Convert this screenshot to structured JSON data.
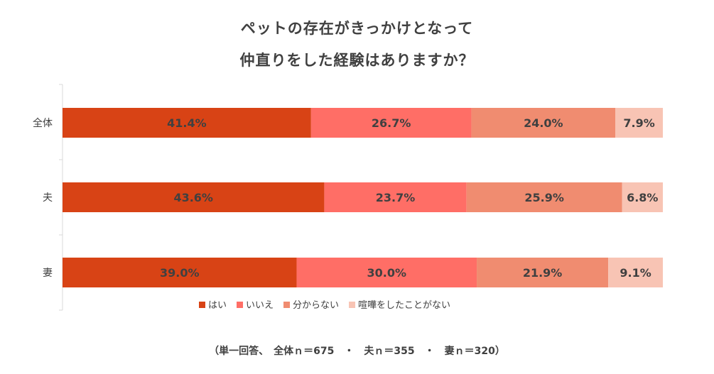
{
  "title_lines": [
    "ペットの存在がきっかけとなって",
    "仲直りをした経験はありますか？"
  ],
  "footnote": "（単一回答、　全体ｎ＝675　・　夫ｎ＝355　・　妻ｎ＝320）",
  "chart_data": {
    "type": "bar",
    "orientation": "horizontal",
    "stacked": true,
    "categories": [
      "全体",
      "夫",
      "妻"
    ],
    "series": [
      {
        "name": "はい",
        "values": [
          41.4,
          43.6,
          39.0
        ],
        "labels": [
          "41.4%",
          "43.6%",
          "39.0%"
        ],
        "color": "#d84315"
      },
      {
        "name": "いいえ",
        "values": [
          26.7,
          23.7,
          30.0
        ],
        "labels": [
          "26.7%",
          "23.7%",
          "30.0%"
        ],
        "color": "#ff6e66"
      },
      {
        "name": "分からない",
        "values": [
          24.0,
          25.9,
          21.9
        ],
        "labels": [
          "24.0%",
          "25.9%",
          "21.9%"
        ],
        "color": "#f08c70"
      },
      {
        "name": "喧嘩をしたことがない",
        "values": [
          7.9,
          6.8,
          9.1
        ],
        "labels": [
          "7.9%",
          "6.8%",
          "9.1%"
        ],
        "color": "#f8c4b4"
      }
    ],
    "xlim": [
      0,
      100
    ],
    "legend_position": "bottom",
    "grid": false
  }
}
